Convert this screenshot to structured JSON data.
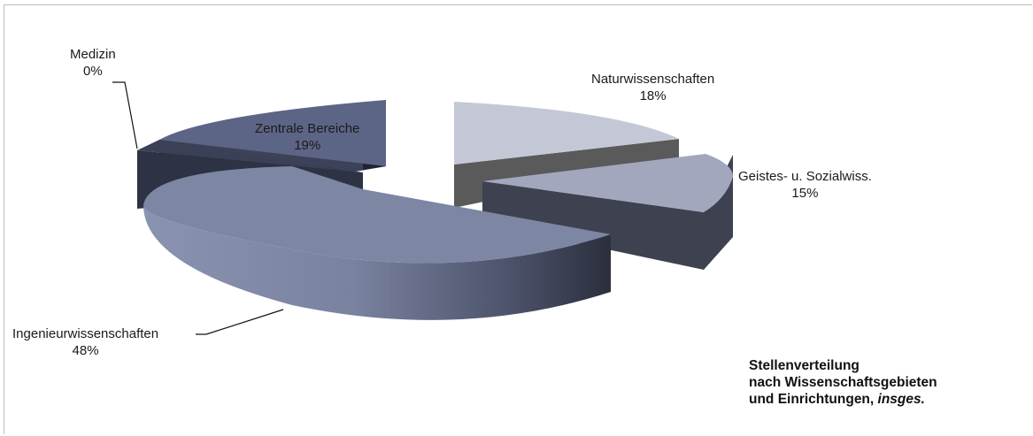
{
  "chart_data": {
    "type": "pie",
    "variant": "3d-exploded",
    "slices": [
      {
        "label": "Naturwissenschaften",
        "value": 18,
        "display": "18%",
        "color": "#c4c8d6"
      },
      {
        "label": "Geistes- u. Sozialwiss.",
        "value": 15,
        "display": "15%",
        "color": "#a3a7bd"
      },
      {
        "label": "Ingenieurwissenschaften",
        "value": 48,
        "display": "48%",
        "color": "#7d86a3"
      },
      {
        "label": "Medizin",
        "value": 0,
        "display": "0%",
        "color": "#2d3345"
      },
      {
        "label": "Zentrale Bereiche",
        "value": 19,
        "display": "19%",
        "color": "#5d6586"
      }
    ]
  },
  "title": {
    "line1": "Stellenverteilung",
    "line2": "nach Wissenschaftsgebieten",
    "line3_main": "und Einrichtungen, ",
    "line3_em": "insges."
  }
}
